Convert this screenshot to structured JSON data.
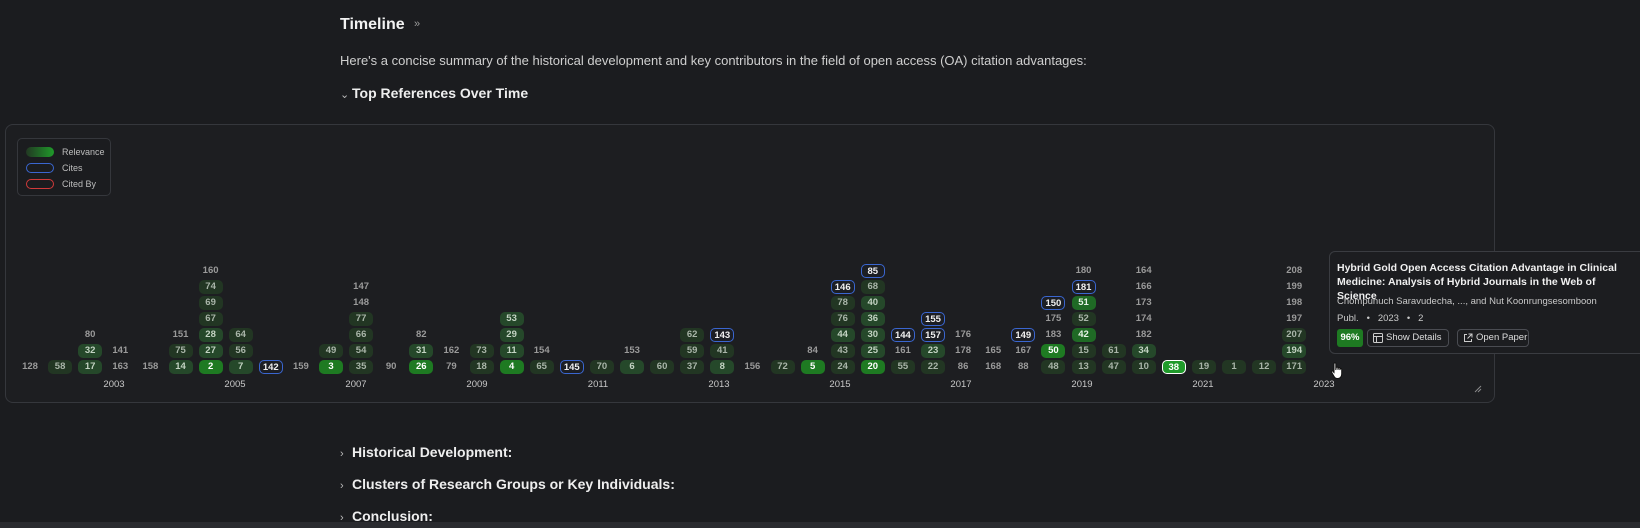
{
  "header": {
    "title": "Timeline",
    "caret": "»"
  },
  "intro": "Here's a concise summary of the historical development and key contributors in the field of open access (OA) citation advantages:",
  "sections": {
    "top_refs": "Top References Over Time",
    "historical": "Historical Development:",
    "clusters": "Clusters of Research Groups or Key Individuals:",
    "conclusion": "Conclusion:"
  },
  "legend": {
    "relevance": "Relevance",
    "cites": "Cites",
    "cited_by": "Cited By"
  },
  "colors": {
    "relevance_max": "#1f9a2a",
    "cites": "#3a66d0",
    "cited_by": "#d03a3a",
    "background": "#1b1c1f"
  },
  "chart_data": {
    "type": "timeline",
    "x_axis_ticks": [
      "2003",
      "2005",
      "2007",
      "2009",
      "2011",
      "2013",
      "2015",
      "2017",
      "2019",
      "2021",
      "2023"
    ],
    "columns": [
      {
        "year": 2002,
        "refs": [
          {
            "id": "128",
            "rel": 0
          }
        ]
      },
      {
        "year": 2004,
        "refs": [
          {
            "id": "58",
            "rel": 1
          }
        ]
      },
      {
        "year": 2005,
        "refs": [
          {
            "id": "17",
            "rel": 2
          },
          {
            "id": "32",
            "rel": 2
          },
          {
            "id": "80",
            "rel": 0
          }
        ]
      },
      {
        "year": 2005,
        "refs": [
          {
            "id": "163",
            "rel": 0
          },
          {
            "id": "141",
            "rel": 0
          }
        ]
      },
      {
        "year": 2006,
        "refs": [
          {
            "id": "158",
            "rel": 0
          }
        ]
      },
      {
        "year": 2006,
        "refs": [
          {
            "id": "14",
            "rel": 2
          },
          {
            "id": "75",
            "rel": 1
          },
          {
            "id": "151",
            "rel": 0
          }
        ]
      },
      {
        "year": 2007,
        "refs": [
          {
            "id": "2",
            "rel": 4
          },
          {
            "id": "27",
            "rel": 2
          },
          {
            "id": "28",
            "rel": 2
          },
          {
            "id": "67",
            "rel": 1
          },
          {
            "id": "69",
            "rel": 1
          },
          {
            "id": "74",
            "rel": 1
          },
          {
            "id": "160",
            "rel": 0
          }
        ]
      },
      {
        "year": 2007,
        "refs": [
          {
            "id": "7",
            "rel": 2
          },
          {
            "id": "56",
            "rel": 1
          },
          {
            "id": "64",
            "rel": 1
          }
        ]
      },
      {
        "year": 2007,
        "refs": [
          {
            "id": "142",
            "rel": 0,
            "cites": true
          }
        ]
      },
      {
        "year": 2008,
        "refs": [
          {
            "id": "159",
            "rel": 0
          }
        ]
      },
      {
        "year": 2008,
        "refs": [
          {
            "id": "3",
            "rel": 4
          },
          {
            "id": "49",
            "rel": 1
          }
        ]
      },
      {
        "year": 2009,
        "refs": [
          {
            "id": "35",
            "rel": 1
          },
          {
            "id": "54",
            "rel": 1
          },
          {
            "id": "66",
            "rel": 1
          },
          {
            "id": "77",
            "rel": 1
          },
          {
            "id": "148",
            "rel": 0
          },
          {
            "id": "147",
            "rel": 0
          }
        ]
      },
      {
        "year": 2009,
        "refs": [
          {
            "id": "90",
            "rel": 0
          }
        ]
      },
      {
        "year": 2010,
        "refs": [
          {
            "id": "26",
            "rel": 4
          },
          {
            "id": "31",
            "rel": 2
          },
          {
            "id": "82",
            "rel": 0
          }
        ]
      },
      {
        "year": 2010,
        "refs": [
          {
            "id": "79",
            "rel": 0
          },
          {
            "id": "162",
            "rel": 0
          }
        ]
      },
      {
        "year": 2011,
        "refs": [
          {
            "id": "18",
            "rel": 1
          },
          {
            "id": "73",
            "rel": 1
          }
        ]
      },
      {
        "year": 2011,
        "refs": [
          {
            "id": "4",
            "rel": 4
          },
          {
            "id": "11",
            "rel": 2
          },
          {
            "id": "29",
            "rel": 2
          },
          {
            "id": "53",
            "rel": 2
          }
        ]
      },
      {
        "year": 2012,
        "refs": [
          {
            "id": "65",
            "rel": 1
          },
          {
            "id": "154",
            "rel": 0
          }
        ]
      },
      {
        "year": 2013,
        "refs": [
          {
            "id": "145",
            "rel": 0,
            "cites": true
          }
        ]
      },
      {
        "year": 2013,
        "refs": [
          {
            "id": "70",
            "rel": 1
          }
        ]
      },
      {
        "year": 2014,
        "refs": [
          {
            "id": "6",
            "rel": 2
          },
          {
            "id": "153",
            "rel": 0
          }
        ]
      },
      {
        "year": 2014,
        "refs": [
          {
            "id": "60",
            "rel": 1
          }
        ]
      },
      {
        "year": 2015,
        "refs": [
          {
            "id": "37",
            "rel": 1
          },
          {
            "id": "59",
            "rel": 1
          },
          {
            "id": "62",
            "rel": 1
          }
        ]
      },
      {
        "year": 2015,
        "refs": [
          {
            "id": "8",
            "rel": 2
          },
          {
            "id": "41",
            "rel": 1
          },
          {
            "id": "143",
            "rel": 0,
            "cites": true
          }
        ]
      },
      {
        "year": 2015,
        "refs": [
          {
            "id": "156",
            "rel": 0
          }
        ]
      },
      {
        "year": 2016,
        "refs": [
          {
            "id": "72",
            "rel": 1
          }
        ]
      },
      {
        "year": 2016,
        "refs": [
          {
            "id": "5",
            "rel": 4
          },
          {
            "id": "84",
            "rel": 0
          }
        ]
      },
      {
        "year": 2017,
        "refs": [
          {
            "id": "24",
            "rel": 1
          },
          {
            "id": "43",
            "rel": 1
          },
          {
            "id": "44",
            "rel": 2
          },
          {
            "id": "76",
            "rel": 1
          },
          {
            "id": "78",
            "rel": 1
          },
          {
            "id": "146",
            "rel": 0,
            "cites": true
          }
        ]
      },
      {
        "year": 2017,
        "refs": [
          {
            "id": "20",
            "rel": 4
          },
          {
            "id": "25",
            "rel": 2
          },
          {
            "id": "30",
            "rel": 2
          },
          {
            "id": "36",
            "rel": 2
          },
          {
            "id": "40",
            "rel": 2
          },
          {
            "id": "68",
            "rel": 1
          },
          {
            "id": "85",
            "rel": 0,
            "cites": true
          }
        ]
      },
      {
        "year": 2018,
        "refs": [
          {
            "id": "55",
            "rel": 1
          },
          {
            "id": "161",
            "rel": 0
          },
          {
            "id": "144",
            "rel": 0,
            "cites": true
          }
        ]
      },
      {
        "year": 2019,
        "refs": [
          {
            "id": "22",
            "rel": 1
          },
          {
            "id": "23",
            "rel": 2
          },
          {
            "id": "157",
            "rel": 0,
            "cites": true
          },
          {
            "id": "155",
            "rel": 0,
            "cites": true
          }
        ]
      },
      {
        "year": 2019,
        "refs": [
          {
            "id": "86",
            "rel": 0
          },
          {
            "id": "178",
            "rel": 0
          },
          {
            "id": "176",
            "rel": 0
          }
        ]
      },
      {
        "year": 2020,
        "refs": [
          {
            "id": "168",
            "rel": 0
          },
          {
            "id": "165",
            "rel": 0
          }
        ]
      },
      {
        "year": 2020,
        "refs": [
          {
            "id": "88",
            "rel": 0
          },
          {
            "id": "167",
            "rel": 0
          },
          {
            "id": "149",
            "rel": 0,
            "cites": true
          }
        ]
      },
      {
        "year": 2021,
        "refs": [
          {
            "id": "48",
            "rel": 1
          },
          {
            "id": "50",
            "rel": 4
          },
          {
            "id": "183",
            "rel": 0
          },
          {
            "id": "175",
            "rel": 0
          },
          {
            "id": "150",
            "rel": 0,
            "cites": true
          }
        ]
      },
      {
        "year": 2022,
        "refs": [
          {
            "id": "13",
            "rel": 1
          },
          {
            "id": "15",
            "rel": 1
          },
          {
            "id": "42",
            "rel": 3
          },
          {
            "id": "52",
            "rel": 1
          },
          {
            "id": "51",
            "rel": 3
          },
          {
            "id": "181",
            "rel": 0,
            "cites": true
          },
          {
            "id": "180",
            "rel": 0
          }
        ]
      },
      {
        "year": 2022,
        "refs": [
          {
            "id": "47",
            "rel": 1
          },
          {
            "id": "61",
            "rel": 1
          }
        ]
      },
      {
        "year": 2022,
        "refs": [
          {
            "id": "10",
            "rel": 1
          },
          {
            "id": "34",
            "rel": 2
          },
          {
            "id": "182",
            "rel": 0
          },
          {
            "id": "174",
            "rel": 0
          },
          {
            "id": "173",
            "rel": 0
          },
          {
            "id": "166",
            "rel": 0
          },
          {
            "id": "164",
            "rel": 0
          }
        ]
      },
      {
        "year": 2023,
        "refs": [
          {
            "id": "38",
            "rel": 5
          }
        ]
      },
      {
        "year": 2023,
        "refs": [
          {
            "id": "19",
            "rel": 1
          }
        ]
      },
      {
        "year": 2023,
        "refs": [
          {
            "id": "1",
            "rel": 1
          }
        ]
      },
      {
        "year": 2024,
        "refs": [
          {
            "id": "12",
            "rel": 1
          }
        ]
      },
      {
        "year": 2024,
        "refs": [
          {
            "id": "171",
            "rel": 1
          },
          {
            "id": "194",
            "rel": 2
          },
          {
            "id": "207",
            "rel": 1
          },
          {
            "id": "197",
            "rel": 0
          },
          {
            "id": "198",
            "rel": 0
          },
          {
            "id": "199",
            "rel": 0
          },
          {
            "id": "208",
            "rel": 0
          }
        ]
      }
    ]
  },
  "tooltip": {
    "title": "Hybrid Gold Open Access Citation Advantage in Clinical Medicine: Analysis of Hybrid Journals in the Web of Science",
    "authors": "Chompunuch Saravudecha, ..., and Nut Koonrungsesomboon",
    "meta": "Publ.   •   2023   •   2",
    "score": "96%",
    "show_details": "Show Details",
    "open_paper": "Open Paper"
  }
}
